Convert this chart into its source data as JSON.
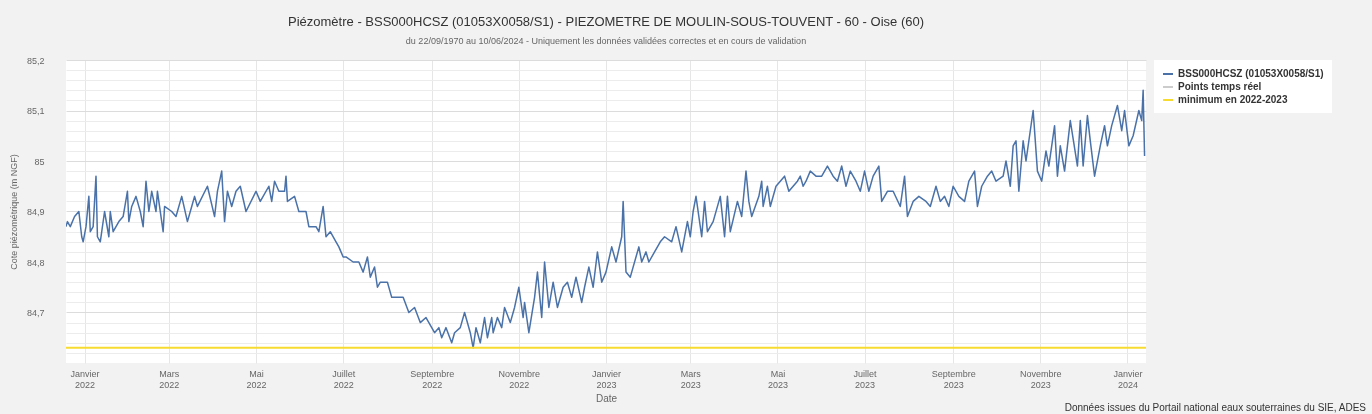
{
  "chart_data": {
    "type": "line",
    "title": "Piézomètre - BSS000HCSZ (01053X0058/S1) - PIEZOMETRE DE MOULIN-SOUS-TOUVENT - 60 - Oise (60)",
    "subtitle": "du 22/09/1970 au 10/06/2024 - Uniquement les données validées correctes et en cours de validation",
    "xlabel": "Date",
    "ylabel": "Cote piézométrique (m NGF)",
    "annotations": [
      "Données issues du Portail national eaux souterraines du SIE, ADES"
    ],
    "x": [
      "2021-12-19",
      "2021-12-20",
      "2021-12-22",
      "2021-12-25",
      "2021-12-28",
      "2021-12-30",
      "2021-12-31",
      "2022-01-02",
      "2022-01-04",
      "2022-01-05",
      "2022-01-07",
      "2022-01-09",
      "2022-01-10",
      "2022-01-12",
      "2022-01-15",
      "2022-01-18",
      "2022-01-19",
      "2022-01-21",
      "2022-01-25",
      "2022-01-28",
      "2022-01-31",
      "2022-02-01",
      "2022-02-03",
      "2022-02-06",
      "2022-02-09",
      "2022-02-11",
      "2022-02-13",
      "2022-02-15",
      "2022-02-17",
      "2022-02-20",
      "2022-02-21",
      "2022-02-25",
      "2022-02-26",
      "2022-03-03",
      "2022-03-06",
      "2022-03-10",
      "2022-03-14",
      "2022-03-17",
      "2022-03-19",
      "2022-03-21",
      "2022-03-28",
      "2022-04-02",
      "2022-04-04",
      "2022-04-07",
      "2022-04-09",
      "2022-04-11",
      "2022-04-14",
      "2022-04-17",
      "2022-04-20",
      "2022-04-24",
      "2022-05-01",
      "2022-05-04",
      "2022-05-10",
      "2022-05-12",
      "2022-05-14",
      "2022-05-17",
      "2022-05-21",
      "2022-05-22",
      "2022-05-23",
      "2022-05-28",
      "2022-05-31",
      "2022-06-05",
      "2022-06-07",
      "2022-06-12",
      "2022-06-14",
      "2022-06-17",
      "2022-06-19",
      "2022-06-22",
      "2022-06-26",
      "2022-06-28",
      "2022-07-01",
      "2022-07-03",
      "2022-07-08",
      "2022-07-12",
      "2022-07-15",
      "2022-07-18",
      "2022-07-20",
      "2022-07-23",
      "2022-07-25",
      "2022-07-27",
      "2022-08-01",
      "2022-08-04",
      "2022-08-09",
      "2022-08-12",
      "2022-08-16",
      "2022-08-20",
      "2022-08-24",
      "2022-08-28",
      "2022-08-30",
      "2022-09-03",
      "2022-09-06",
      "2022-09-08",
      "2022-09-11",
      "2022-09-15",
      "2022-09-17",
      "2022-09-21",
      "2022-09-24",
      "2022-09-28",
      "2022-09-30",
      "2022-10-02",
      "2022-10-05",
      "2022-10-08",
      "2022-10-10",
      "2022-10-13",
      "2022-10-14",
      "2022-10-17",
      "2022-10-20",
      "2022-10-22",
      "2022-10-26",
      "2022-10-29",
      "2022-11-01",
      "2022-11-04",
      "2022-11-05",
      "2022-11-08",
      "2022-11-12",
      "2022-11-14",
      "2022-11-17",
      "2022-11-19",
      "2022-11-22",
      "2022-11-25",
      "2022-11-28",
      "2022-12-02",
      "2022-12-05",
      "2022-12-08",
      "2022-12-11",
      "2022-12-15",
      "2022-12-17",
      "2022-12-20",
      "2022-12-23",
      "2022-12-26",
      "2022-12-29",
      "2023-01-01",
      "2023-01-05",
      "2023-01-08",
      "2023-01-12",
      "2023-01-13",
      "2023-01-15",
      "2023-01-18",
      "2023-01-24",
      "2023-01-26",
      "2023-01-29",
      "2023-01-31",
      "2023-02-04",
      "2023-02-08",
      "2023-02-11",
      "2023-02-16",
      "2023-02-19",
      "2023-02-23",
      "2023-02-27",
      "2023-03-01",
      "2023-03-03",
      "2023-03-05",
      "2023-03-09",
      "2023-03-11",
      "2023-03-13",
      "2023-03-17",
      "2023-03-22",
      "2023-03-25",
      "2023-03-27",
      "2023-03-29",
      "2023-04-03",
      "2023-04-06",
      "2023-04-09",
      "2023-04-11",
      "2023-04-13",
      "2023-04-18",
      "2023-04-20",
      "2023-04-21",
      "2023-04-24",
      "2023-04-26",
      "2023-04-30",
      "2023-05-06",
      "2023-05-09",
      "2023-05-15",
      "2023-05-17",
      "2023-05-19",
      "2023-05-21",
      "2023-05-24",
      "2023-05-28",
      "2023-06-01",
      "2023-06-05",
      "2023-06-09",
      "2023-06-12",
      "2023-06-15",
      "2023-06-18",
      "2023-06-21",
      "2023-06-25",
      "2023-06-28",
      "2023-07-01",
      "2023-07-04",
      "2023-07-07",
      "2023-07-11",
      "2023-07-13",
      "2023-07-17",
      "2023-07-21",
      "2023-07-26",
      "2023-07-29",
      "2023-07-31",
      "2023-08-04",
      "2023-08-08",
      "2023-08-13",
      "2023-08-16",
      "2023-08-20",
      "2023-08-23",
      "2023-08-26",
      "2023-08-29",
      "2023-09-01",
      "2023-09-05",
      "2023-09-09",
      "2023-09-12",
      "2023-09-16",
      "2023-09-18",
      "2023-09-21",
      "2023-09-25",
      "2023-09-28",
      "2023-10-01",
      "2023-10-06",
      "2023-10-08",
      "2023-10-11",
      "2023-10-13",
      "2023-10-15",
      "2023-10-17",
      "2023-10-20",
      "2023-10-22",
      "2023-10-27",
      "2023-10-30",
      "2023-11-02",
      "2023-11-05",
      "2023-11-07",
      "2023-11-11",
      "2023-11-13",
      "2023-11-15",
      "2023-11-18",
      "2023-11-22",
      "2023-11-27",
      "2023-11-29",
      "2023-12-01",
      "2023-12-04",
      "2023-12-06",
      "2023-12-09",
      "2023-12-13",
      "2023-12-16",
      "2023-12-18",
      "2023-12-21",
      "2023-12-25",
      "2023-12-28",
      "2023-12-30",
      "2024-01-02",
      "2024-01-05",
      "2024-01-09",
      "2024-01-11",
      "2024-01-12",
      "2024-01-13"
    ],
    "series": [
      {
        "name": "BSS000HCSZ (01053X0058/S1)",
        "color": "#4a72a8",
        "values": [
          84.87,
          84.88,
          84.87,
          84.89,
          84.9,
          84.85,
          84.84,
          84.87,
          84.93,
          84.86,
          84.87,
          84.97,
          84.85,
          84.84,
          84.9,
          84.85,
          84.9,
          84.86,
          84.88,
          84.89,
          84.94,
          84.88,
          84.91,
          84.93,
          84.9,
          84.87,
          84.96,
          84.9,
          84.94,
          84.9,
          84.94,
          84.86,
          84.91,
          84.9,
          84.89,
          84.93,
          84.88,
          84.91,
          84.93,
          84.91,
          84.95,
          84.89,
          84.94,
          84.98,
          84.88,
          84.94,
          84.91,
          84.94,
          84.95,
          84.9,
          84.94,
          84.92,
          84.95,
          84.92,
          84.96,
          84.94,
          84.94,
          84.97,
          84.92,
          84.93,
          84.9,
          84.9,
          84.87,
          84.87,
          84.86,
          84.91,
          84.85,
          84.86,
          84.84,
          84.83,
          84.81,
          84.81,
          84.8,
          84.8,
          84.78,
          84.81,
          84.77,
          84.79,
          84.75,
          84.76,
          84.76,
          84.73,
          84.73,
          84.73,
          84.7,
          84.71,
          84.68,
          84.69,
          84.68,
          84.66,
          84.67,
          84.65,
          84.67,
          84.64,
          84.66,
          84.67,
          84.7,
          84.66,
          84.63,
          84.67,
          84.64,
          84.69,
          84.65,
          84.69,
          84.66,
          84.69,
          84.67,
          84.71,
          84.68,
          84.71,
          84.75,
          84.69,
          84.72,
          84.66,
          84.73,
          84.78,
          84.69,
          84.8,
          84.71,
          84.76,
          84.71,
          84.75,
          84.76,
          84.73,
          84.77,
          84.72,
          84.75,
          84.79,
          84.75,
          84.82,
          84.76,
          84.78,
          84.83,
          84.8,
          84.85,
          84.92,
          84.78,
          84.77,
          84.83,
          84.8,
          84.82,
          84.8,
          84.82,
          84.84,
          84.85,
          84.84,
          84.87,
          84.82,
          84.88,
          84.85,
          84.9,
          84.93,
          84.85,
          84.92,
          84.86,
          84.88,
          84.93,
          84.85,
          84.93,
          84.86,
          84.92,
          84.89,
          84.98,
          84.92,
          84.89,
          84.93,
          84.96,
          84.91,
          84.95,
          84.91,
          84.95,
          84.97,
          84.94,
          84.96,
          84.97,
          84.95,
          84.96,
          84.98,
          84.97,
          84.97,
          84.99,
          84.97,
          84.96,
          84.99,
          84.95,
          84.98,
          84.96,
          84.94,
          84.98,
          84.94,
          84.97,
          84.99,
          84.92,
          84.94,
          84.94,
          84.91,
          84.97,
          84.89,
          84.92,
          84.93,
          84.92,
          84.91,
          84.95,
          84.92,
          84.93,
          84.91,
          84.95,
          84.93,
          84.92,
          84.96,
          84.98,
          84.91,
          84.95,
          84.97,
          84.98,
          84.96,
          84.97,
          85.0,
          84.95,
          85.03,
          85.04,
          84.94,
          85.04,
          85.0,
          85.1,
          84.98,
          84.96,
          85.02,
          84.99,
          85.07,
          84.97,
          85.03,
          84.98,
          85.08,
          84.99,
          85.08,
          84.99,
          85.09,
          85.04,
          84.97,
          85.03,
          85.07,
          85.03,
          85.07,
          85.11,
          85.06,
          85.1,
          85.03,
          85.05,
          85.1,
          85.08,
          85.14,
          85.01
        ]
      },
      {
        "name": "Points temps réel",
        "color": "#cccccc",
        "values": [
          null,
          null,
          null,
          null,
          null,
          null,
          null,
          null,
          null,
          null,
          null,
          null,
          null,
          null,
          null,
          null,
          null,
          null,
          null,
          null,
          null,
          null,
          null,
          null,
          null,
          null,
          null,
          null,
          null,
          null,
          null,
          null,
          null,
          null,
          null,
          null,
          null,
          null,
          null,
          null,
          null,
          null,
          null,
          null,
          null,
          null,
          null,
          null,
          null,
          null,
          null,
          null,
          null,
          null,
          null,
          null,
          null,
          null,
          null,
          null,
          null,
          null,
          null,
          null,
          null,
          null,
          null,
          null,
          null,
          null,
          null,
          null,
          null,
          null,
          null,
          null,
          null,
          null,
          null,
          null,
          null,
          null,
          null,
          null,
          null,
          null,
          null,
          null,
          null,
          null,
          null,
          null,
          null,
          null,
          null,
          null,
          null,
          null,
          null,
          null,
          null,
          null,
          null,
          null,
          null,
          null,
          null,
          null,
          null,
          null,
          null,
          null,
          null,
          null,
          null,
          null,
          null,
          null,
          null,
          null,
          null,
          null,
          null,
          null,
          null,
          null,
          null,
          null,
          null,
          null,
          null,
          null,
          null,
          null,
          null,
          null,
          null,
          null,
          null,
          null,
          null,
          null,
          null,
          null,
          null,
          null,
          null,
          null,
          null,
          null,
          null,
          null,
          null,
          null,
          null,
          null,
          null,
          null,
          null,
          null,
          null,
          null,
          null,
          null,
          null,
          null,
          null,
          null,
          null,
          null,
          null,
          null,
          null,
          null,
          null,
          null,
          null,
          null,
          null,
          null,
          null,
          null,
          null,
          null,
          null,
          null,
          null,
          null,
          null,
          null,
          null,
          null,
          null,
          null,
          null,
          null,
          null,
          null,
          null,
          null,
          null,
          null,
          null,
          null,
          null,
          null,
          null,
          null,
          null,
          null,
          null,
          null,
          null,
          null,
          null,
          null,
          null,
          null,
          null,
          null,
          null,
          null,
          null,
          null,
          null,
          null,
          null,
          null,
          null,
          null,
          null,
          null,
          null,
          null,
          null,
          null,
          null,
          null,
          null,
          null,
          null,
          null,
          null,
          null,
          null,
          null,
          null,
          null,
          null,
          null,
          null,
          null,
          null
        ]
      }
    ],
    "ref_lines": [
      {
        "axis": "y",
        "value": 84.63,
        "label": "minimum en 2022-2023",
        "color": "#f7dc2f"
      }
    ],
    "xlim": [
      "2021-12-19",
      "2024-01-14"
    ],
    "xticks": [
      {
        "value": "2022-01-01",
        "label": "Janvier\n2022"
      },
      {
        "value": "2022-03-01",
        "label": "Mars\n2022"
      },
      {
        "value": "2022-05-01",
        "label": "Mai\n2022"
      },
      {
        "value": "2022-07-01",
        "label": "Juillet\n2022"
      },
      {
        "value": "2022-09-01",
        "label": "Septembre\n2022"
      },
      {
        "value": "2022-11-01",
        "label": "Novembre\n2022"
      },
      {
        "value": "2023-01-01",
        "label": "Janvier\n2023"
      },
      {
        "value": "2023-03-01",
        "label": "Mars\n2023"
      },
      {
        "value": "2023-05-01",
        "label": "Mai\n2023"
      },
      {
        "value": "2023-07-01",
        "label": "Juillet\n2023"
      },
      {
        "value": "2023-09-01",
        "label": "Septembre\n2023"
      },
      {
        "value": "2023-11-01",
        "label": "Novembre\n2023"
      },
      {
        "value": "2024-01-01",
        "label": "Janvier\n2024"
      }
    ],
    "ylim": [
      84.6,
      85.2
    ],
    "yticks": [
      {
        "value": 84.62,
        "label": null
      },
      {
        "value": 84.64,
        "label": null
      },
      {
        "value": 84.66,
        "label": null
      },
      {
        "value": 84.68,
        "label": null
      },
      {
        "value": 84.7,
        "label": "84,7"
      },
      {
        "value": 84.72,
        "label": null
      },
      {
        "value": 84.74,
        "label": null
      },
      {
        "value": 84.76,
        "label": null
      },
      {
        "value": 84.78,
        "label": null
      },
      {
        "value": 84.8,
        "label": "84,8"
      },
      {
        "value": 84.82,
        "label": null
      },
      {
        "value": 84.84,
        "label": null
      },
      {
        "value": 84.86,
        "label": null
      },
      {
        "value": 84.88,
        "label": null
      },
      {
        "value": 84.9,
        "label": "84,9"
      },
      {
        "value": 84.92,
        "label": null
      },
      {
        "value": 84.94,
        "label": null
      },
      {
        "value": 84.96,
        "label": null
      },
      {
        "value": 84.98,
        "label": null
      },
      85,
      {
        "value": 85.02,
        "label": null
      },
      {
        "value": 85.04,
        "label": null
      },
      {
        "value": 85.06,
        "label": null
      },
      {
        "value": 85.08,
        "label": null
      },
      {
        "value": 85.1,
        "label": "85,1"
      },
      {
        "value": 85.12,
        "label": null
      },
      {
        "value": 85.14,
        "label": null
      },
      {
        "value": 85.16,
        "label": null
      },
      {
        "value": 85.18,
        "label": null
      },
      {
        "value": 85.2,
        "label": "85,2"
      }
    ],
    "grid": true,
    "legend": "top right"
  }
}
